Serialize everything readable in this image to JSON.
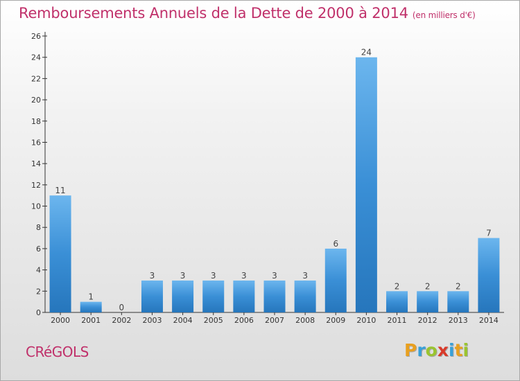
{
  "chart_data": {
    "type": "bar",
    "title": "Remboursements Annuels de la Dette de 2000 à 2014",
    "subtitle": "(en milliers d'€)",
    "categories": [
      "2000",
      "2001",
      "2002",
      "2003",
      "2004",
      "2005",
      "2006",
      "2007",
      "2008",
      "2009",
      "2010",
      "2011",
      "2012",
      "2013",
      "2014"
    ],
    "values": [
      11,
      1,
      0,
      3,
      3,
      3,
      3,
      3,
      3,
      6,
      24,
      2,
      2,
      2,
      7
    ],
    "ylim": [
      0,
      26
    ],
    "yticks": [
      0,
      2,
      4,
      6,
      8,
      10,
      12,
      14,
      16,
      18,
      20,
      22,
      24,
      26
    ],
    "xlabel": "",
    "ylabel": "",
    "grid": false,
    "bar_color": "#3a8fd6",
    "bar_color_light": "#6cb6ee",
    "bar_color_dark": "#2676bc",
    "title_color": "#c0306a"
  },
  "footer": {
    "commune": "CRéGOLS",
    "logo_text": "Proxiti",
    "logo_letters": [
      {
        "ch": "P",
        "color": "#e8a020"
      },
      {
        "ch": "r",
        "color": "#38a0d8"
      },
      {
        "ch": "o",
        "color": "#9ac430"
      },
      {
        "ch": "x",
        "color": "#d83a2a"
      },
      {
        "ch": "i",
        "color": "#38a0d8"
      },
      {
        "ch": "t",
        "color": "#e8a020"
      },
      {
        "ch": "i",
        "color": "#9ac430"
      }
    ]
  }
}
